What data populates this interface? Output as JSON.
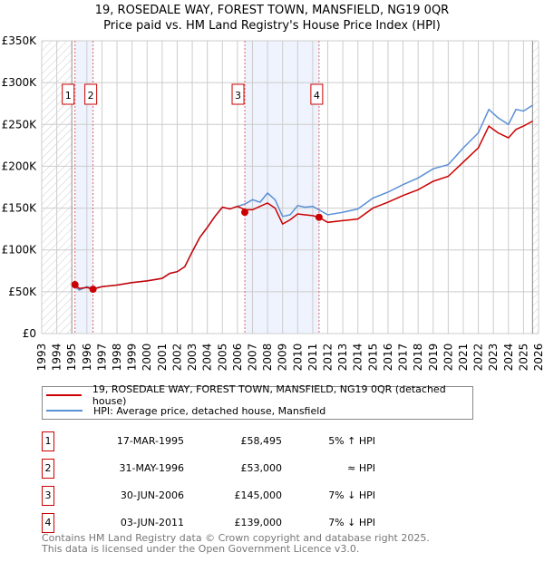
{
  "title_line1": "19, ROSEDALE WAY, FOREST TOWN, MANSFIELD, NG19 0QR",
  "title_line2": "Price paid vs. HM Land Registry's House Price Index (HPI)",
  "chart_data": {
    "type": "line",
    "xlim": [
      1993,
      2026
    ],
    "ylim": [
      0,
      350000
    ],
    "x_ticks": [
      "1993",
      "1994",
      "1995",
      "1996",
      "1997",
      "1998",
      "1999",
      "2000",
      "2001",
      "2002",
      "2003",
      "2004",
      "2005",
      "2006",
      "2007",
      "2008",
      "2009",
      "2010",
      "2011",
      "2012",
      "2013",
      "2014",
      "2015",
      "2016",
      "2017",
      "2018",
      "2019",
      "2020",
      "2021",
      "2022",
      "2023",
      "2024",
      "2025",
      "2026"
    ],
    "y_ticks": [
      {
        "v": 0,
        "label": "£0"
      },
      {
        "v": 50000,
        "label": "£50K"
      },
      {
        "v": 100000,
        "label": "£100K"
      },
      {
        "v": 150000,
        "label": "£150K"
      },
      {
        "v": 200000,
        "label": "£200K"
      },
      {
        "v": 250000,
        "label": "£250K"
      },
      {
        "v": 300000,
        "label": "£300K"
      },
      {
        "v": 350000,
        "label": "£350K"
      }
    ],
    "grid": true,
    "hatched_ranges": [
      [
        1993,
        1995.0
      ],
      [
        2025.6,
        2026
      ]
    ],
    "shaded_ranges": [
      [
        1995.21,
        1996.41
      ],
      [
        2006.49,
        2011.42
      ]
    ],
    "series": [
      {
        "name": "19, ROSEDALE WAY, FOREST TOWN, MANSFIELD, NG19 0QR (detached house)",
        "color": "#cc0000",
        "x": [
          1995.2,
          1995.5,
          1996,
          1996.4,
          1997,
          1998,
          1999,
          2000,
          2001,
          2001.5,
          2002,
          2002.5,
          2003,
          2003.5,
          2004,
          2004.5,
          2005,
          2005.5,
          2006,
          2006.5,
          2007,
          2007.5,
          2008,
          2008.5,
          2009,
          2009.5,
          2010,
          2010.5,
          2011,
          2011.4,
          2012,
          2013,
          2014,
          2015,
          2016,
          2017,
          2018,
          2019,
          2020,
          2021,
          2022,
          2022.7,
          2023.3,
          2024,
          2024.5,
          2025,
          2025.6
        ],
        "y": [
          58500,
          54000,
          55000,
          53000,
          56000,
          58000,
          61000,
          63000,
          66000,
          72000,
          74000,
          80000,
          98000,
          115000,
          127000,
          140000,
          151000,
          149000,
          152000,
          148000,
          148000,
          152000,
          156000,
          150000,
          131000,
          136000,
          143000,
          142000,
          141000,
          139000,
          133000,
          135000,
          137000,
          150000,
          157000,
          165000,
          172000,
          182000,
          188000,
          205000,
          222000,
          248000,
          240000,
          234000,
          244000,
          248000,
          254000
        ]
      },
      {
        "name": "HPI: Average price, detached house, Mansfield",
        "color": "#5b8fd6",
        "x": [
          1995.2,
          1995.5,
          1996,
          1996.4,
          1997,
          1998,
          1999,
          2000,
          2001,
          2001.5,
          2002,
          2002.5,
          2003,
          2003.5,
          2004,
          2004.5,
          2005,
          2005.5,
          2006,
          2006.5,
          2007,
          2007.5,
          2008,
          2008.5,
          2009,
          2009.5,
          2010,
          2010.5,
          2011,
          2011.4,
          2012,
          2013,
          2014,
          2015,
          2016,
          2017,
          2018,
          2019,
          2020,
          2021,
          2022,
          2022.7,
          2023.3,
          2024,
          2024.5,
          2025,
          2025.6
        ],
        "y": [
          56000,
          52000,
          56000,
          54000,
          56000,
          58000,
          61000,
          63000,
          66000,
          72000,
          74000,
          80000,
          98000,
          115000,
          127000,
          140000,
          151000,
          149000,
          152000,
          155000,
          160000,
          157000,
          168000,
          160000,
          140000,
          142000,
          153000,
          151000,
          152000,
          148000,
          142000,
          145000,
          149000,
          162000,
          169000,
          178000,
          186000,
          197000,
          202000,
          222000,
          240000,
          268000,
          258000,
          250000,
          268000,
          266000,
          273000
        ]
      }
    ],
    "sales": [
      {
        "label": "1",
        "x": 1995.21,
        "y": 58495
      },
      {
        "label": "2",
        "x": 1996.41,
        "y": 53000
      },
      {
        "label": "3",
        "x": 2006.49,
        "y": 145000
      },
      {
        "label": "4",
        "x": 2011.42,
        "y": 139000
      }
    ]
  },
  "legend": {
    "property": "19, ROSEDALE WAY, FOREST TOWN, MANSFIELD, NG19 0QR (detached house)",
    "hpi": "HPI: Average price, detached house, Mansfield"
  },
  "transactions": [
    {
      "num": "1",
      "date": "17-MAR-1995",
      "price": "£58,495",
      "relation": "5% ↑ HPI"
    },
    {
      "num": "2",
      "date": "31-MAY-1996",
      "price": "£53,000",
      "relation": "≈ HPI"
    },
    {
      "num": "3",
      "date": "30-JUN-2006",
      "price": "£145,000",
      "relation": "7% ↓ HPI"
    },
    {
      "num": "4",
      "date": "03-JUN-2011",
      "price": "£139,000",
      "relation": "7% ↓ HPI"
    }
  ],
  "footer": {
    "line1": "Contains HM Land Registry data © Crown copyright and database right 2025.",
    "line2": "This data is licensed under the Open Government Licence v3.0."
  }
}
